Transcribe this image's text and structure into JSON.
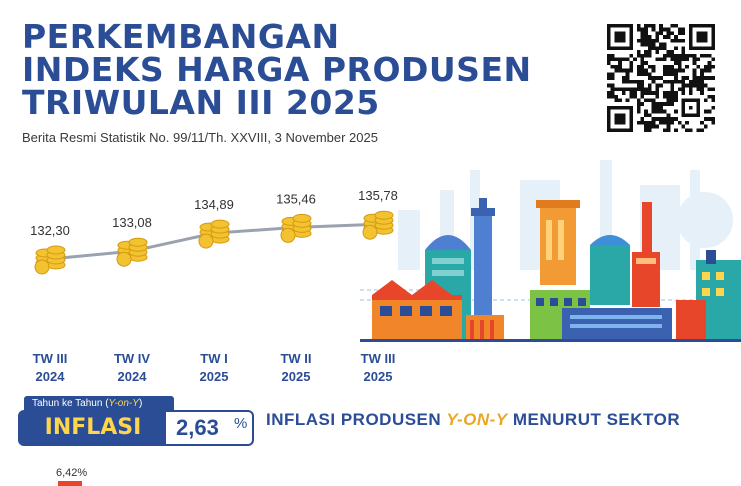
{
  "header": {
    "title_lines": [
      "PERKEMBANGAN",
      "INDEKS HARGA PRODUSEN",
      "TRIWULAN III 2025"
    ],
    "subtitle": "Berita Resmi Statistik No. 99/11/Th. XXVIII, 3 November 2025"
  },
  "qr_icon": "qr-code-icon",
  "chart_data": {
    "type": "line",
    "categories": [
      "TW III 2024",
      "TW IV 2024",
      "TW I 2025",
      "TW II 2025",
      "TW III 2025"
    ],
    "category_lines": [
      [
        "TW III",
        "2024"
      ],
      [
        "TW IV",
        "2024"
      ],
      [
        "TW I",
        "2025"
      ],
      [
        "TW II",
        "2025"
      ],
      [
        "TW III",
        "2025"
      ]
    ],
    "values": [
      132.3,
      133.08,
      134.89,
      135.46,
      135.78
    ],
    "value_labels": [
      "132,30",
      "133,08",
      "134,89",
      "135,46",
      "135,78"
    ],
    "marker": "coin-stack-icon",
    "colors": {
      "line": "#9aa3ad",
      "coin": "#f2c230",
      "coin_edge": "#d49a10",
      "axis_label": "#2b4d96"
    }
  },
  "inflasi": {
    "tag_prefix": "Tahun ke Tahun (",
    "tag_em": "Y-on-Y",
    "tag_suffix": ")",
    "label": "INFLASI",
    "value": "2,63",
    "unit": "%"
  },
  "sector": {
    "title_a": "INFLASI PRODUSEN ",
    "title_em": "Y-ON-Y",
    "title_b": " MENURUT SEKTOR",
    "first_value": "6,42%"
  },
  "colors": {
    "primary": "#2b4d96",
    "accent": "#ffd54d",
    "orange": "#f0852a",
    "teal": "#2aa7a7",
    "red": "#e8462a"
  }
}
